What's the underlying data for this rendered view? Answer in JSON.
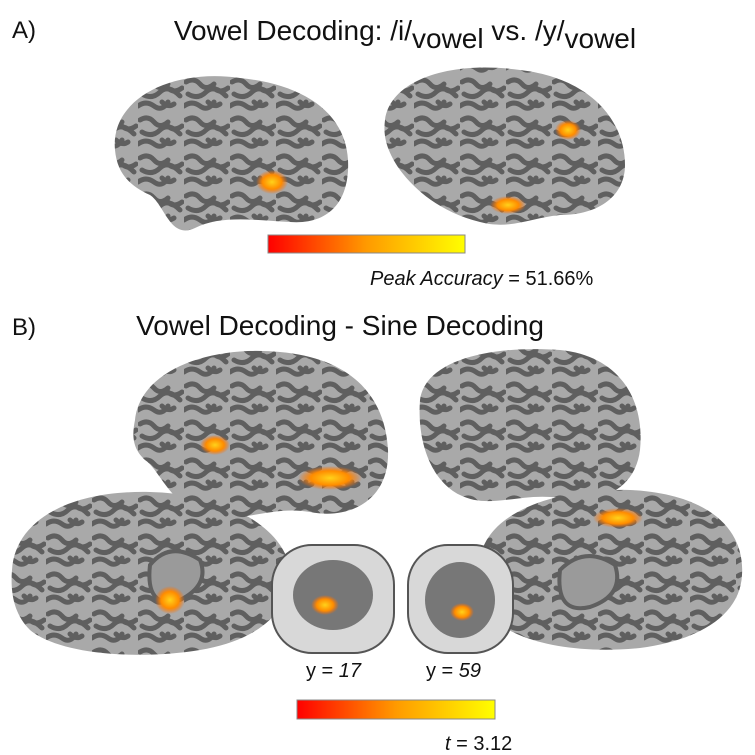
{
  "panel_a": {
    "label": "A)",
    "title": {
      "part1": "Vowel Decoding: /i/",
      "sub1": "vowel",
      "part2": " vs. /y/",
      "sub2": "vowel"
    },
    "colorbar_caption": {
      "measure": "Peak Accuracy",
      "value": " = 51.66%"
    }
  },
  "panel_b": {
    "label": "B)",
    "title": "Vowel Decoding - Sine Decoding",
    "slices": [
      {
        "prefix": "y = ",
        "coordinate": "17"
      },
      {
        "prefix": "y = ",
        "coordinate": "59"
      }
    ],
    "colorbar_caption": {
      "stat": "t",
      "value": " = 3.12"
    }
  }
}
